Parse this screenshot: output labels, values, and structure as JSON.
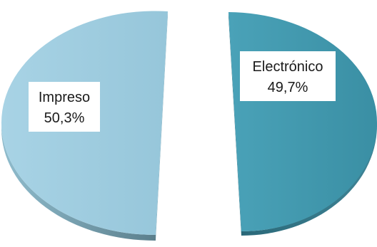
{
  "chart_data": {
    "type": "pie",
    "style": "3d-exploded",
    "slices": [
      {
        "label": "Electrónico",
        "value": 49.7,
        "value_label": "49,7%",
        "color": "#4298ad",
        "side_color": "#2f6f80"
      },
      {
        "label": "Impreso",
        "value": 50.3,
        "value_label": "50,3%",
        "color": "#9fcde0",
        "side_color": "#6f9cac"
      }
    ]
  }
}
